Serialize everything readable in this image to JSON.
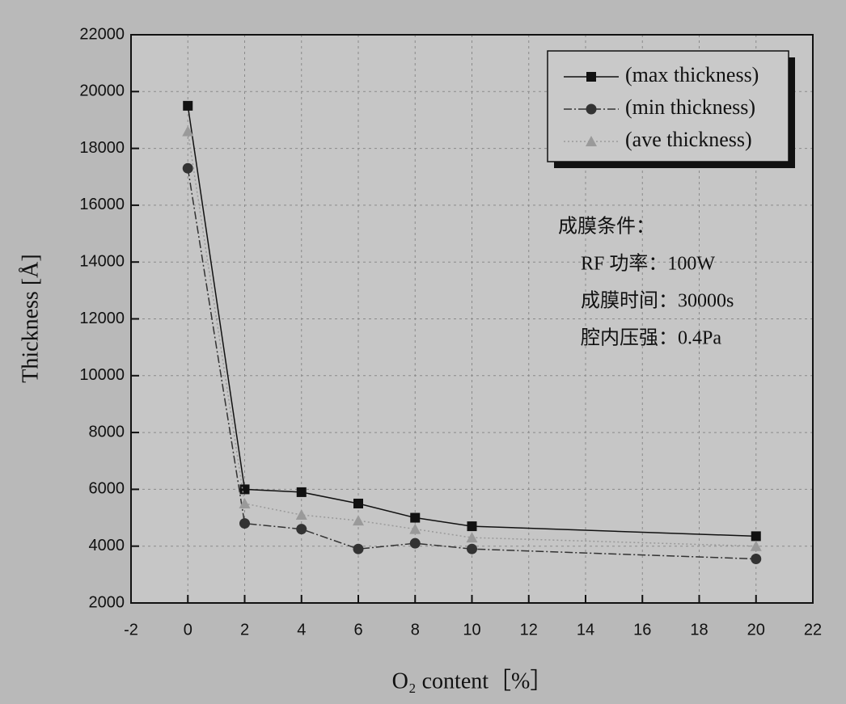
{
  "chart_data": {
    "type": "line",
    "xlabel": "O₂ content［%］",
    "ylabel": "Thickness [Å]",
    "x": [
      0,
      2,
      4,
      6,
      8,
      10,
      20
    ],
    "series": [
      {
        "name": "(max thickness)",
        "color": "#111111",
        "marker": "square",
        "values": [
          19500,
          6000,
          5900,
          5500,
          5000,
          4700,
          4350
        ]
      },
      {
        "name": "(min thickness)",
        "color": "#333333",
        "marker": "circle",
        "values": [
          17300,
          4800,
          4600,
          3900,
          4100,
          3900,
          3550
        ]
      },
      {
        "name": "(ave thickness)",
        "color": "#9a9a9a",
        "marker": "triangle",
        "values": [
          18600,
          5500,
          5100,
          4900,
          4600,
          4300,
          4000
        ]
      }
    ],
    "xlim": [
      -2,
      22
    ],
    "xticks": [
      -2,
      0,
      2,
      4,
      6,
      8,
      10,
      12,
      14,
      16,
      18,
      20,
      22
    ],
    "ylim": [
      2000,
      22000
    ],
    "yticks": [
      2000,
      4000,
      6000,
      8000,
      10000,
      12000,
      14000,
      16000,
      18000,
      20000,
      22000
    ],
    "grid": true,
    "legend": "upper right",
    "annotations": [
      "成膜条件：",
      "RF 功率：100W",
      "成膜时间：30000s",
      "腔内压强：0.4Pa"
    ]
  }
}
